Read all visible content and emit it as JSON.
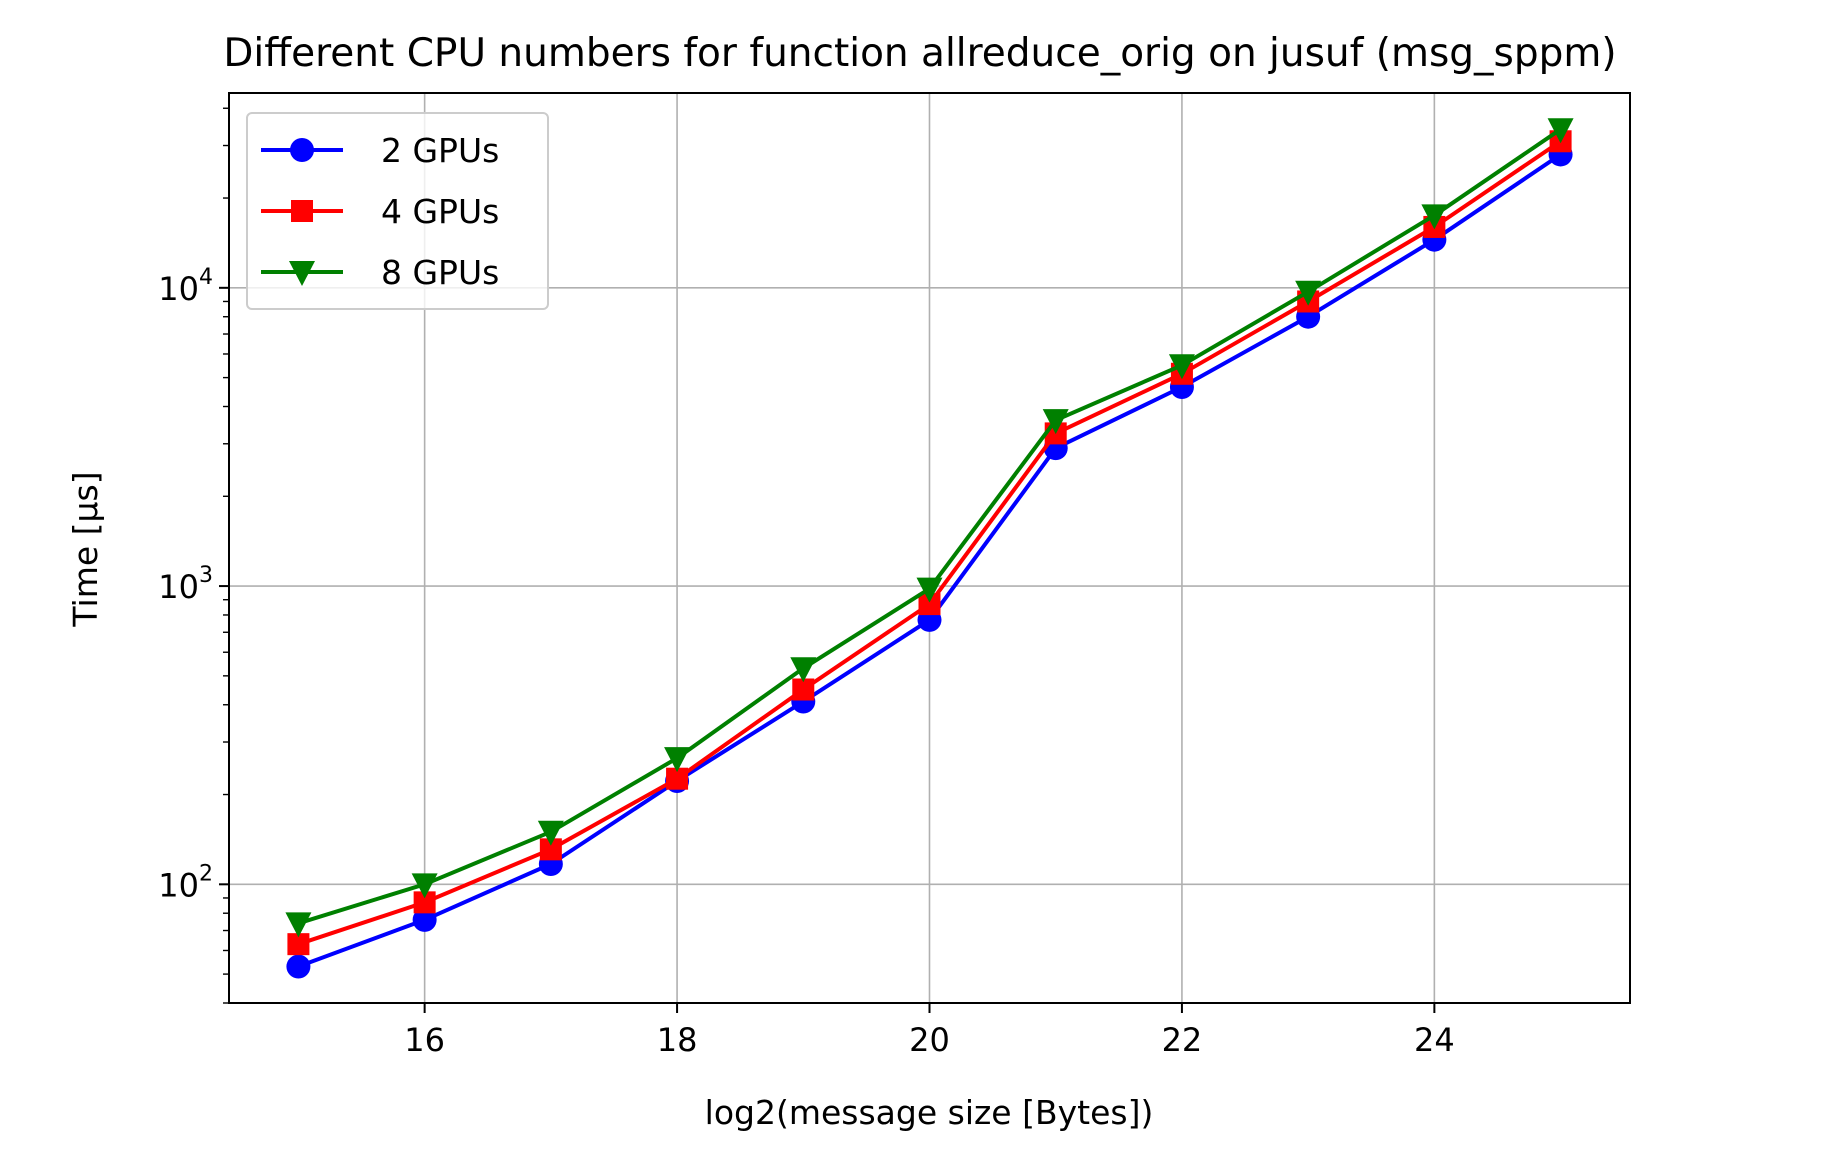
{
  "chart_data": {
    "type": "line",
    "title": "Different CPU numbers for function allreduce_orig on jusuf (msg_sppm)",
    "xlabel": "log2(message size [Bytes])",
    "ylabel": "Time [µs]",
    "xlim": [
      14.45,
      25.55
    ],
    "ylim": [
      40,
      45000
    ],
    "yscale": "log",
    "grid": true,
    "legend_position": "upper left",
    "x_ticks": [
      16,
      18,
      20,
      22,
      24
    ],
    "x_tick_labels": [
      "16",
      "18",
      "20",
      "22",
      "24"
    ],
    "y_ticks": [
      {
        "value": 100,
        "base": "10",
        "exp": "2"
      },
      {
        "value": 1000,
        "base": "10",
        "exp": "3"
      },
      {
        "value": 10000,
        "base": "10",
        "exp": "4"
      }
    ],
    "x": [
      15,
      16,
      17,
      18,
      19,
      20,
      21,
      22,
      23,
      24,
      25
    ],
    "series": [
      {
        "name": "2 GPUs",
        "color": "#0000ff",
        "marker": "circle",
        "values": [
          53,
          76,
          117,
          222,
          410,
          770,
          2900,
          4650,
          8000,
          14500,
          28000
        ]
      },
      {
        "name": "4 GPUs",
        "color": "#ff0000",
        "marker": "square",
        "values": [
          63,
          87,
          131,
          226,
          450,
          870,
          3250,
          5150,
          9000,
          16000,
          31000
        ]
      },
      {
        "name": "8 GPUs",
        "color": "#008000",
        "marker": "triangle-down",
        "values": [
          74,
          100,
          150,
          265,
          530,
          980,
          3600,
          5500,
          9700,
          17500,
          34000
        ]
      }
    ]
  }
}
